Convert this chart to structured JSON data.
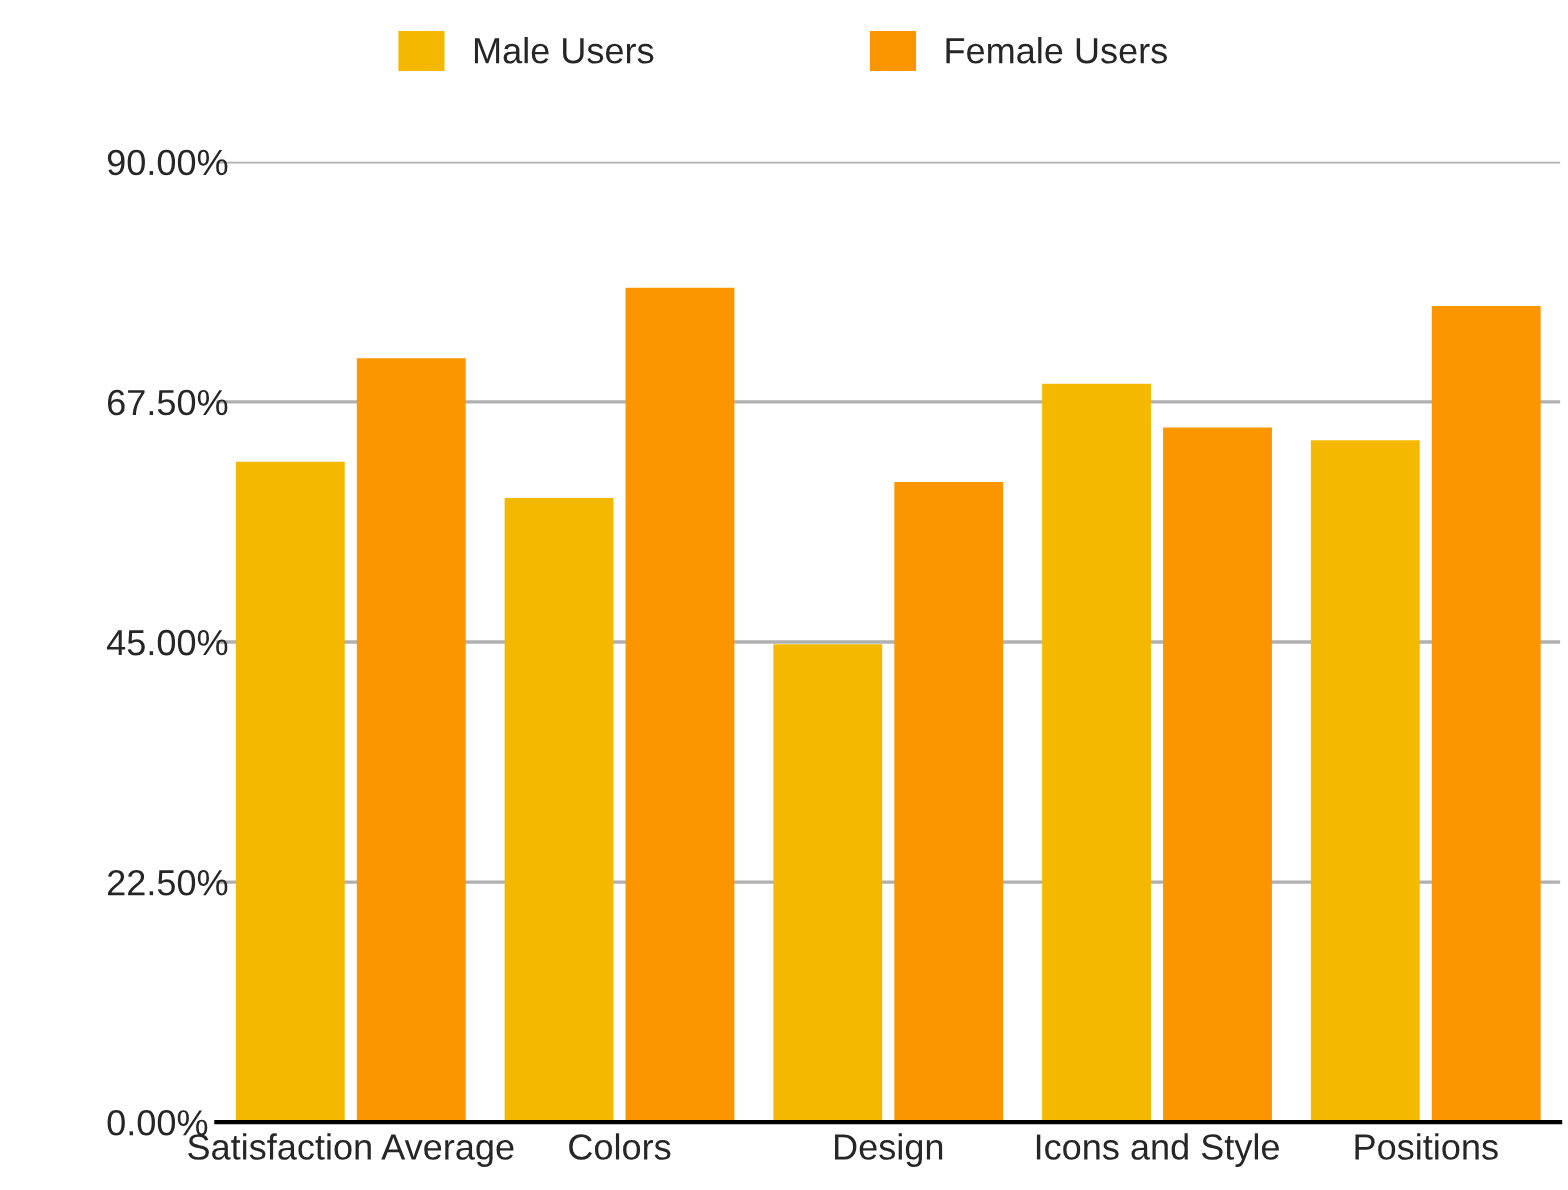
{
  "chart_data": {
    "type": "bar",
    "categories": [
      "Satisfaction Average",
      "Colors",
      "Design",
      "Icons and Style",
      "Positions"
    ],
    "series": [
      {
        "name": "Male Users",
        "color": "#f5b800",
        "values": [
          61.9,
          58.5,
          44.8,
          69.2,
          63.9
        ]
      },
      {
        "name": "Female Users",
        "color": "#fb9500",
        "values": [
          71.6,
          78.2,
          60.0,
          65.1,
          76.5
        ]
      }
    ],
    "ylim": [
      0,
      90
    ],
    "yticks": [
      {
        "value": 0,
        "label": "0.00%"
      },
      {
        "value": 22.5,
        "label": "22.50%"
      },
      {
        "value": 45,
        "label": "45.00%"
      },
      {
        "value": 67.5,
        "label": "67.50%"
      },
      {
        "value": 90,
        "label": "90.00%"
      }
    ],
    "grid": "y",
    "legend": "top"
  }
}
